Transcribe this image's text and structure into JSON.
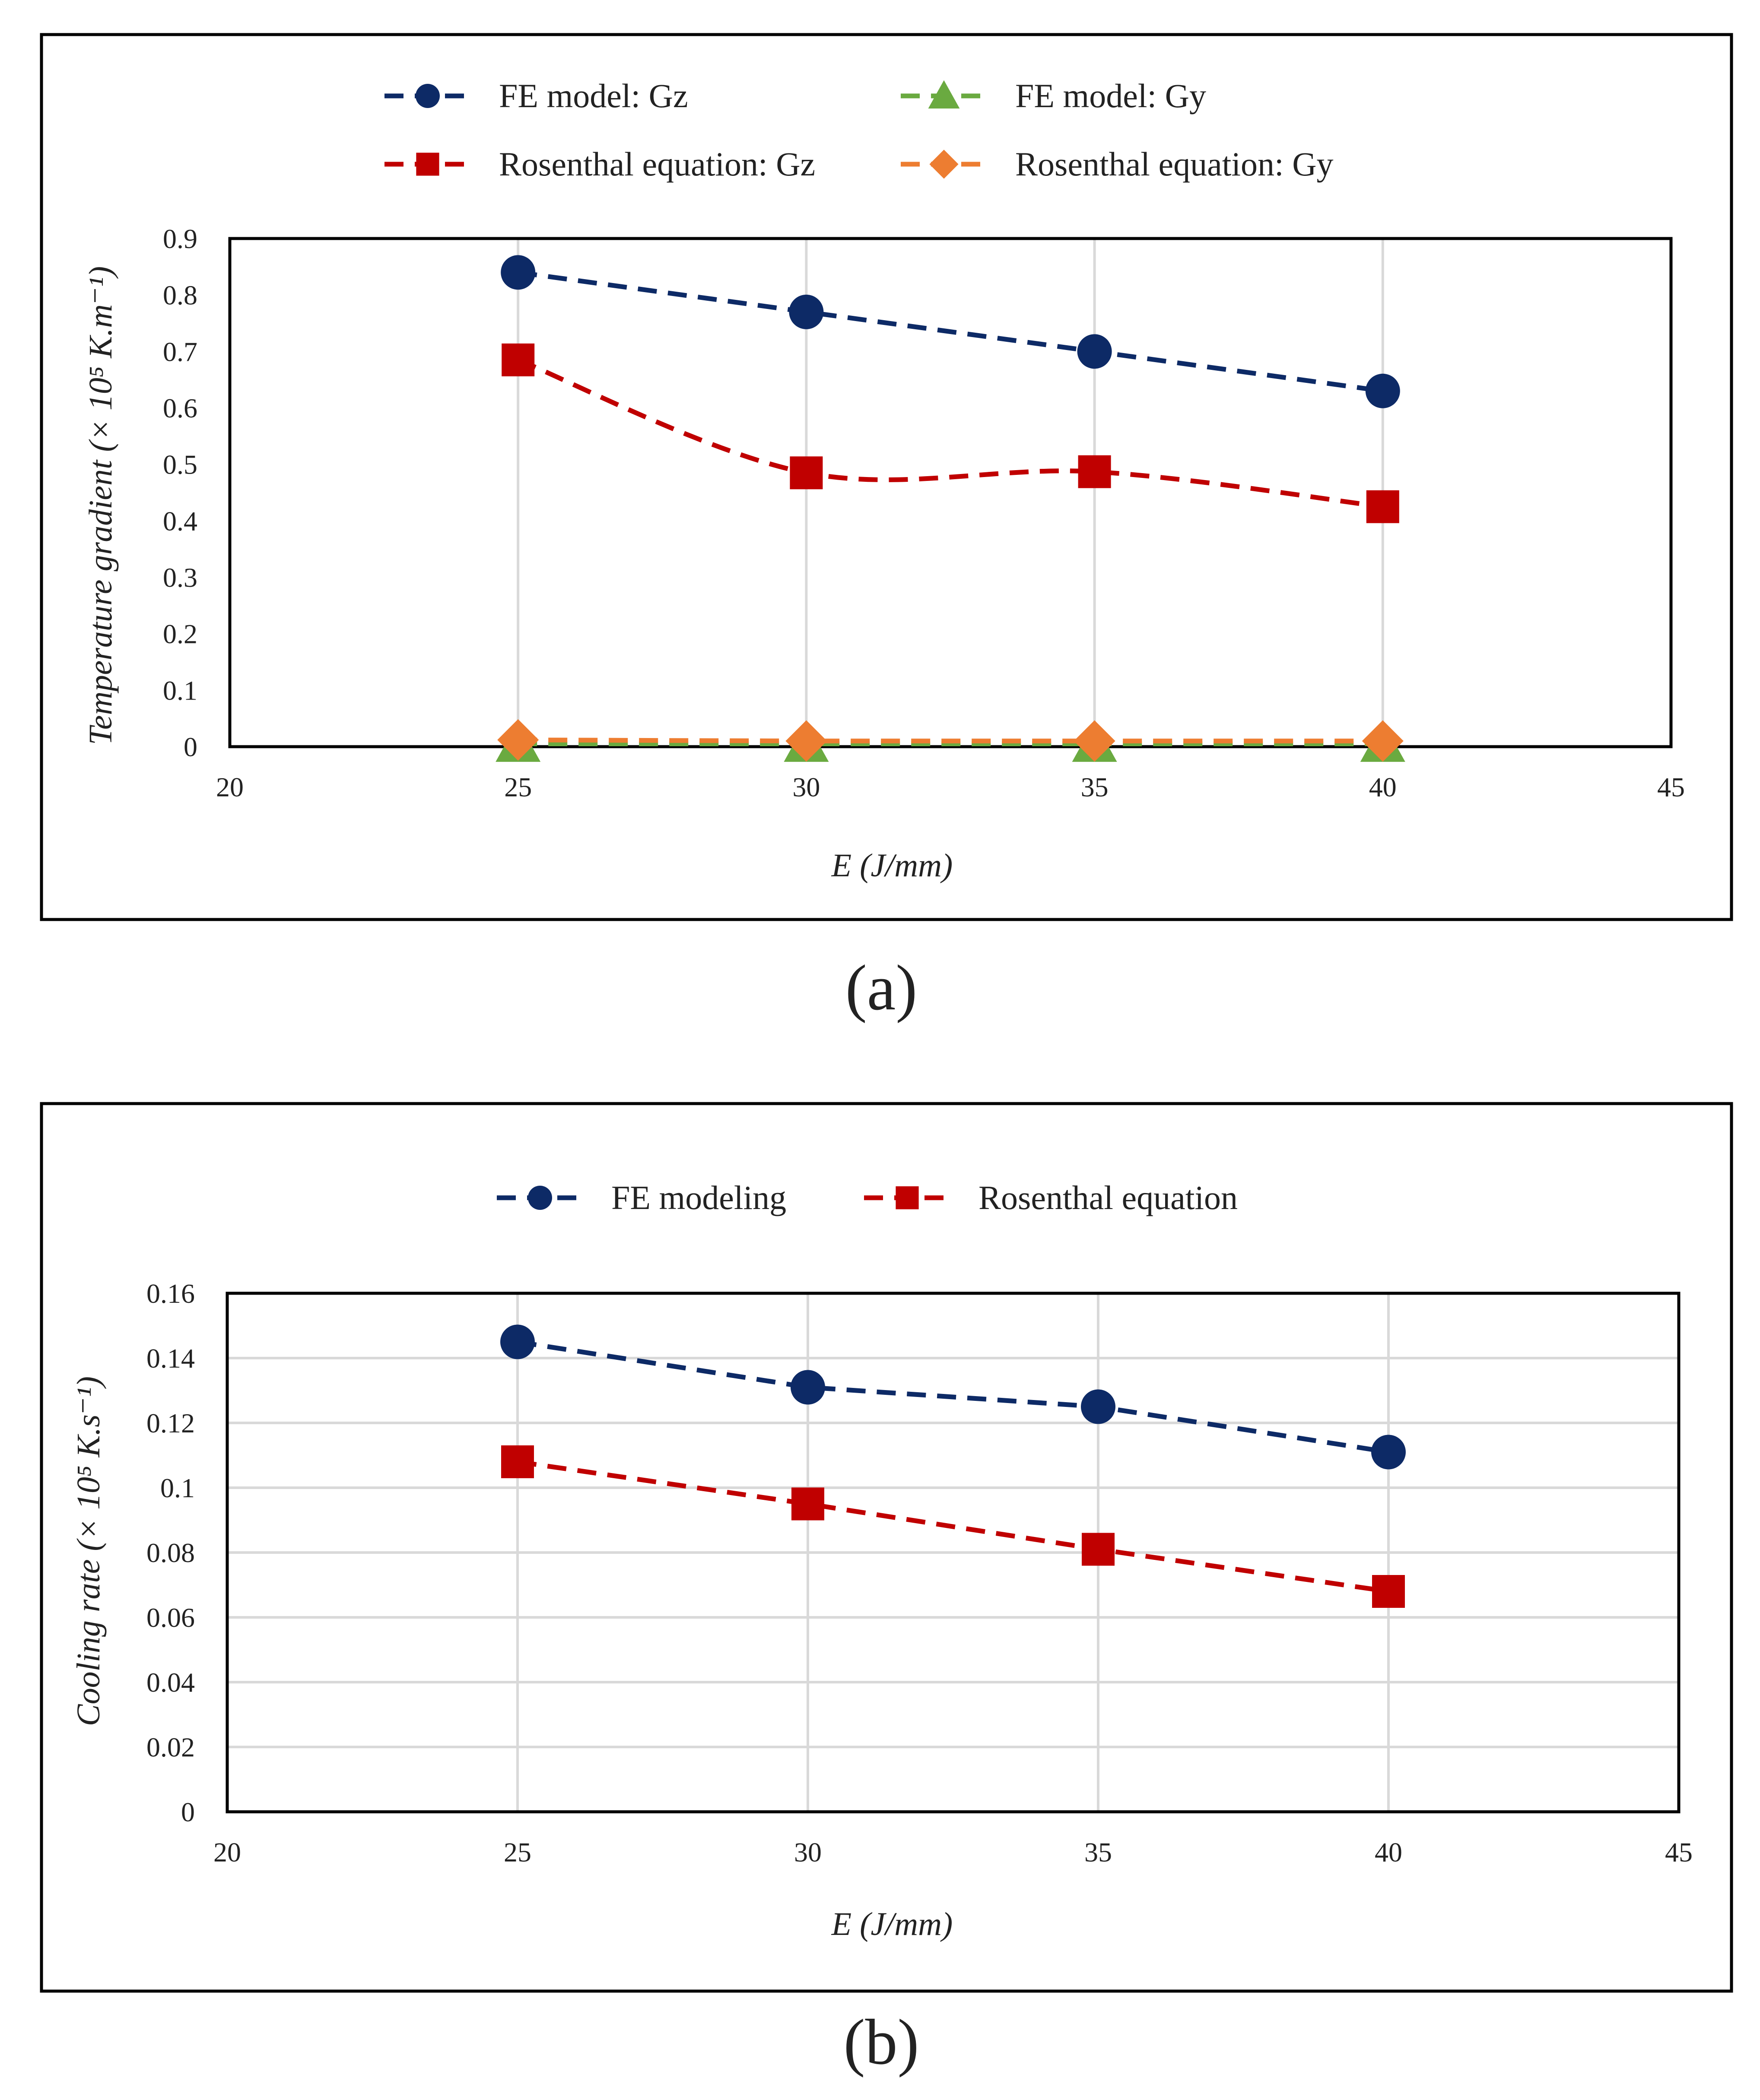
{
  "chart_data": [
    {
      "id": "a",
      "type": "line",
      "caption": "(a)",
      "xlabel": "E (J/mm)",
      "ylabel": "Temperature gradient (× 10⁵ K.m⁻¹)",
      "xlim": [
        20,
        45
      ],
      "ylim": [
        0,
        0.9
      ],
      "x_ticks": [
        "20",
        "25",
        "30",
        "35",
        "40",
        "45"
      ],
      "y_ticks": [
        "0",
        "0.1",
        "0.2",
        "0.3",
        "0.4",
        "0.5",
        "0.6",
        "0.7",
        "0.8",
        "0.9"
      ],
      "grid": "vertical",
      "legend_position": "top",
      "x": [
        25,
        30,
        35,
        40
      ],
      "series": [
        {
          "name": "FE model: Gz",
          "values": [
            0.84,
            0.77,
            0.7,
            0.63
          ],
          "color": "#0d2a66",
          "marker": "circle",
          "smooth": false
        },
        {
          "name": "FE model: Gy",
          "values": [
            0.005,
            0.005,
            0.005,
            0.005
          ],
          "color": "#6aaa40",
          "marker": "triangle",
          "smooth": false
        },
        {
          "name": "Rosenthal equation: Gz",
          "values": [
            0.685,
            0.485,
            0.487,
            0.425
          ],
          "color": "#c00000",
          "marker": "square",
          "smooth": true
        },
        {
          "name": "Rosenthal equation: Gy",
          "values": [
            0.012,
            0.01,
            0.01,
            0.01
          ],
          "color": "#ed7d31",
          "marker": "diamond",
          "smooth": false
        }
      ]
    },
    {
      "id": "b",
      "type": "line",
      "caption": "(b)",
      "xlabel": "E (J/mm)",
      "ylabel": "Cooling rate (× 10⁵ K.s⁻¹)",
      "xlim": [
        20,
        45
      ],
      "ylim": [
        0,
        0.16
      ],
      "x_ticks": [
        "20",
        "25",
        "30",
        "35",
        "40",
        "45"
      ],
      "y_ticks": [
        "0",
        "0.02",
        "0.04",
        "0.06",
        "0.08",
        "0.1",
        "0.12",
        "0.14",
        "0.16"
      ],
      "grid": "both",
      "legend_position": "top",
      "x": [
        25,
        30,
        35,
        40
      ],
      "series": [
        {
          "name": "FE modeling",
          "values": [
            0.145,
            0.131,
            0.125,
            0.111
          ],
          "color": "#0d2a66",
          "marker": "circle",
          "smooth": false
        },
        {
          "name": "Rosenthal equation",
          "values": [
            0.108,
            0.095,
            0.081,
            0.068
          ],
          "color": "#c00000",
          "marker": "square",
          "smooth": false
        }
      ]
    }
  ]
}
